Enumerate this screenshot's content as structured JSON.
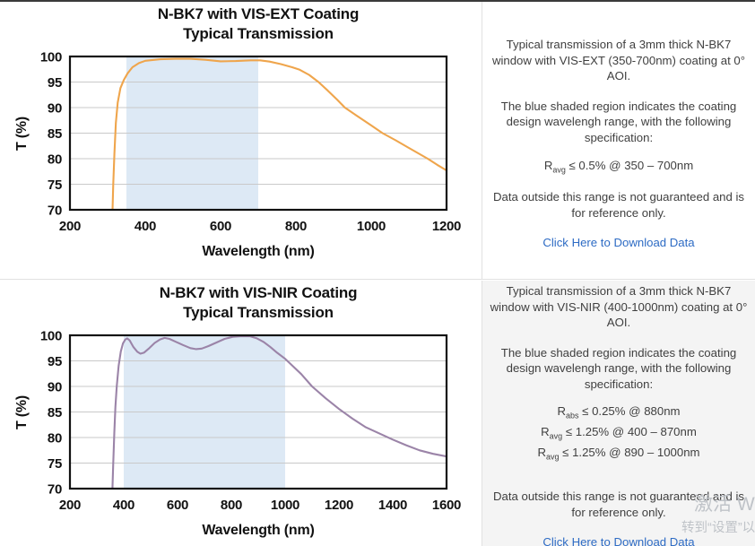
{
  "colors": {
    "top_border": "#3a3a3a",
    "divider": "#e1e1e1",
    "row2_panel_bg": "#f4f4f4",
    "panel_text": "#3f3f3f",
    "link": "#2d6bc4",
    "axis": "#111111",
    "grid": "#c9c9c9",
    "shade_blue": "#dde9f5",
    "vis_ext_line": "#efa54c",
    "vis_nir_line": "#9b84a8",
    "watermark": "#bfc3c8"
  },
  "chart_data": [
    {
      "type": "line",
      "title_line1": "N-BK7 with VIS-EXT Coating",
      "title_line2": "Typical Transmission",
      "xlabel": "Wavelength (nm)",
      "ylabel": "T (%)",
      "xlim": [
        200,
        1200
      ],
      "ylim": [
        70,
        100
      ],
      "xticks": [
        200,
        400,
        600,
        800,
        1000,
        1200
      ],
      "yticks": [
        70,
        75,
        80,
        85,
        90,
        95,
        100
      ],
      "grid": "horizontal",
      "shaded_region": [
        350,
        700
      ],
      "shade_color": "#dde9f5",
      "line_color": "#efa54c",
      "series": [
        {
          "name": "VIS-EXT transmission",
          "points": [
            [
              313,
              70
            ],
            [
              315,
              75
            ],
            [
              318,
              81
            ],
            [
              322,
              87
            ],
            [
              327,
              91
            ],
            [
              334,
              93.8
            ],
            [
              343,
              95.4
            ],
            [
              353,
              96.7
            ],
            [
              366,
              97.9
            ],
            [
              383,
              98.7
            ],
            [
              400,
              99.15
            ],
            [
              440,
              99.45
            ],
            [
              480,
              99.55
            ],
            [
              520,
              99.55
            ],
            [
              560,
              99.35
            ],
            [
              600,
              99.05
            ],
            [
              640,
              99.1
            ],
            [
              680,
              99.25
            ],
            [
              705,
              99.25
            ],
            [
              730,
              99.0
            ],
            [
              760,
              98.5
            ],
            [
              790,
              97.9
            ],
            [
              810,
              97.4
            ],
            [
              835,
              96.4
            ],
            [
              860,
              95.0
            ],
            [
              885,
              93.3
            ],
            [
              910,
              91.5
            ],
            [
              930,
              90.0
            ],
            [
              960,
              88.5
            ],
            [
              1000,
              86.5
            ],
            [
              1030,
              85.0
            ],
            [
              1065,
              83.6
            ],
            [
              1100,
              82.1
            ],
            [
              1150,
              80.0
            ],
            [
              1175,
              78.8
            ],
            [
              1200,
              77.7
            ]
          ]
        }
      ]
    },
    {
      "type": "line",
      "title_line1": "N-BK7 with VIS-NIR Coating",
      "title_line2": "Typical Transmission",
      "xlabel": "Wavelength (nm)",
      "ylabel": "T (%)",
      "xlim": [
        200,
        1600
      ],
      "ylim": [
        70,
        100
      ],
      "xticks": [
        200,
        400,
        600,
        800,
        1000,
        1200,
        1400,
        1600
      ],
      "yticks": [
        70,
        75,
        80,
        85,
        90,
        95,
        100
      ],
      "grid": "horizontal",
      "shaded_region": [
        400,
        1000
      ],
      "shade_color": "#dde9f5",
      "line_color": "#9b84a8",
      "series": [
        {
          "name": "VIS-NIR transmission",
          "points": [
            [
              358,
              70
            ],
            [
              361,
              75
            ],
            [
              365,
              81
            ],
            [
              369,
              86
            ],
            [
              374,
              90
            ],
            [
              381,
              94
            ],
            [
              389,
              96.8
            ],
            [
              397,
              98.4
            ],
            [
              406,
              99.2
            ],
            [
              413,
              99.4
            ],
            [
              422,
              99.0
            ],
            [
              436,
              97.7
            ],
            [
              450,
              96.8
            ],
            [
              462,
              96.4
            ],
            [
              475,
              96.6
            ],
            [
              495,
              97.5
            ],
            [
              515,
              98.5
            ],
            [
              535,
              99.2
            ],
            [
              552,
              99.5
            ],
            [
              570,
              99.3
            ],
            [
              595,
              98.7
            ],
            [
              620,
              98.1
            ],
            [
              648,
              97.5
            ],
            [
              668,
              97.3
            ],
            [
              690,
              97.4
            ],
            [
              715,
              97.9
            ],
            [
              745,
              98.6
            ],
            [
              775,
              99.3
            ],
            [
              805,
              99.7
            ],
            [
              840,
              99.85
            ],
            [
              870,
              99.8
            ],
            [
              895,
              99.4
            ],
            [
              920,
              98.7
            ],
            [
              945,
              97.7
            ],
            [
              970,
              96.6
            ],
            [
              1000,
              95.4
            ],
            [
              1030,
              93.9
            ],
            [
              1060,
              92.4
            ],
            [
              1100,
              90.0
            ],
            [
              1150,
              87.7
            ],
            [
              1200,
              85.6
            ],
            [
              1250,
              83.7
            ],
            [
              1300,
              82.0
            ],
            [
              1350,
              80.8
            ],
            [
              1400,
              79.6
            ],
            [
              1450,
              78.5
            ],
            [
              1500,
              77.5
            ],
            [
              1550,
              76.8
            ],
            [
              1600,
              76.3
            ]
          ]
        }
      ]
    }
  ],
  "rows": [
    {
      "panel": {
        "p1": "Typical transmission of a 3mm thick N-BK7 window with VIS-EXT (350-700nm) coating at 0° AOI.",
        "p2": "The blue shaded region indicates the coating design wavelengh range, with the following specification:",
        "specs": [
          {
            "base": "R",
            "sub": "avg",
            "rest": " ≤ 0.5% @ 350 – 700nm"
          }
        ],
        "note": "Data outside this range is not guaranteed and is for reference only.",
        "link": "Click Here to Download Data"
      }
    },
    {
      "panel": {
        "p1": "Typical transmission of a 3mm thick N-BK7 window with VIS-NIR (400-1000nm) coating at 0° AOI.",
        "p2": "The blue shaded region indicates the coating design wavelengh range, with the following specification:",
        "specs": [
          {
            "base": "R",
            "sub": "abs",
            "rest": " ≤ 0.25% @ 880nm"
          },
          {
            "base": "R",
            "sub": "avg",
            "rest": " ≤ 1.25% @ 400 – 870nm"
          },
          {
            "base": "R",
            "sub": "avg",
            "rest": " ≤ 1.25% @ 890 – 1000nm"
          }
        ],
        "note": "Data outside this range is not guaranteed and is for reference only.",
        "link": "Click Here to Download Data"
      }
    }
  ],
  "watermark": {
    "line1": "激活 Windows",
    "line2": "转到“设置”以激活"
  }
}
